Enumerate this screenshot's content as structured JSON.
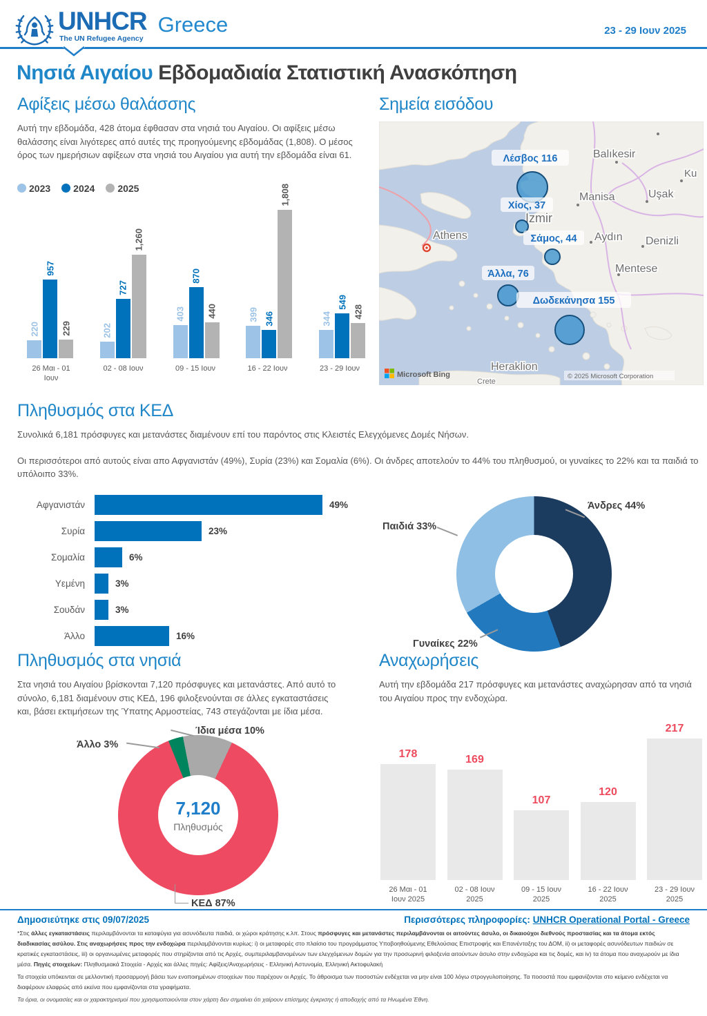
{
  "header": {
    "brand": "UNHCR",
    "tagline": "The UN Refugee Agency",
    "region": "Greece",
    "date_range": "23 - 29 Ιουν 2025"
  },
  "title": {
    "highlight": "Νησιά Αιγαίου",
    "rest": " Εβδομαδιαία Στατιστική Ανασκόπηση"
  },
  "arrivals": {
    "title": "Αφίξεις μέσω θαλάσσης",
    "body": "Αυτή την εβδομάδα, 428 άτομα έφθασαν στα νησιά του Αιγαίου. Οι αφίξεις μέσω θαλάσσης είναι λιγότερες από αυτές της προηγούμενης εβδομάδας (1,808). Ο μέσος όρος των ημερήσιων αφίξεων στα νησιά του Αιγαίου για αυτή την εβδομάδα είναι 61."
  },
  "entry_points": {
    "title": "Σημεία εισόδου",
    "provider": "Microsoft Bing",
    "attribution": "© 2025 Microsoft Corporation",
    "locations": [
      {
        "name": "Λέσβος",
        "label": "Λέσβος 116",
        "value": 116
      },
      {
        "name": "Χίος",
        "label": "Χίος, 37",
        "value": 37
      },
      {
        "name": "Σάμος",
        "label": "Σάμος, 44",
        "value": 44
      },
      {
        "name": "Άλλα",
        "label": "Άλλα, 76",
        "value": 76
      },
      {
        "name": "Δωδεκάνησα",
        "label": "Δωδεκάνησα 155",
        "value": 155
      }
    ],
    "cities": [
      "Athens",
      "Izmir",
      "Balıkesir",
      "Manisa",
      "Uşak",
      "Ku",
      "Aydın",
      "Denizli",
      "Mentese",
      "Heraklion",
      "Crete"
    ]
  },
  "ced": {
    "title": "Πληθυσμός στα ΚΕΔ",
    "body1": "Συνολικά 6,181 πρόσφυγες και μετανάστες διαμένουν επί του παρόντος στις Κλειστές Ελεγχόμενες Δομές Νήσων.",
    "body2": "Οι περισσότεροι από αυτούς είναι απο Αφγανιστάν (49%), Συρία (23%) και Σομαλία (6%). Οι άνδρες αποτελούν το 44% του πληθυσμού, οι γυναίκες το 22% και τα παιδιά το υπόλοιπο 33%.",
    "donut_labels": {
      "men": "Άνδρες 44%",
      "children": "Παιδιά 33%",
      "women": "Γυναίκες 22%"
    }
  },
  "islands": {
    "title": "Πληθυσμός στα νησιά",
    "body": "Στα νησιά του Αιγαίου βρίσκονται 7,120 πρόσφυγες και μετανάστες. Από αυτό το σύνολο, 6,181 διαμένουν στις ΚΕΔ, 196 φιλοξενούνται σε άλλες εγκαταστάσεις και, βάσει εκτιμήσεων της Ύπατης Αρμοστείας, 743 στεγάζονται με ίδια μέσα.",
    "donut_labels": {
      "own": "Ίδια μέσα 10%",
      "other": "Άλλο 3%",
      "ked": "ΚΕΔ 87%"
    },
    "center_value": "7,120",
    "center_label": "Πληθυσμός"
  },
  "departures": {
    "title": "Αναχωρήσεις",
    "body": "Αυτή την εβδομάδα 217 πρόσφυγες και μετανάστες αναχώρησαν από τα νησιά του Αιγαίου προς την ενδοχώρα."
  },
  "footer": {
    "published": "Δημοσιεύτηκε στις 09/07/2025",
    "more_info_label": "Περισσότερες πληροφορίες:",
    "more_info_link": "UNHCR Operational Portal - Greece",
    "notes": [
      {
        "italic": false,
        "segments": [
          {
            "text": "*Στις ",
            "bold": false
          },
          {
            "text": "άλλες εγκαταστάσεις",
            "bold": true
          },
          {
            "text": " περιλαμβάνονται τα καταφύγια για ασυνόδευτα παιδιά, οι χώροι κράτησης κ.λπ. Στους ",
            "bold": false
          },
          {
            "text": "πρόσφυγες και μετανάστες περιλαμβάνονται οι αιτούντες άσυλο, οι δικαιούχοι διεθνούς προστασίας και τα άτομα εκτός διαδικασίας ασύλου. ",
            "bold": true
          },
          {
            "text": "Στις αναχωρήσεις προς την ενδοχώρα",
            "bold": true
          },
          {
            "text": " περιλαμβάνονται κυρίως: i) οι μεταφορές στο πλαίσιο του προγράμματος Υποβοηθούμενης Εθελούσιας Επιστροφής και Επανένταξης του ΔΟΜ, ii) οι μεταφορές ασυνόδευτων παιδιών σε κρατικές εγκαταστάσεις, iii) οι οργανωμένες μεταφορές που στηρίζονται από τις Αρχές, συμπεριλαμβανομένων των ελεγχόμενων δομών για την προσωρινή φιλοξενία αιτούντων άσυλο στην ενδοχώρα και τις δομές, και iv) τα άτομα που αναχωρούν με ίδια μέσα. ",
            "bold": false
          },
          {
            "text": "Πηγές στοιχείων:",
            "bold": true
          },
          {
            "text": " Πληθυσμιακά Στοιχεία - Αρχές και άλλες πηγές: Αφίξεις/Αναχωρήσεις - Ελληνική Αστυνομία, Ελληνική Ακτοφυλακή",
            "bold": false
          }
        ]
      },
      {
        "italic": false,
        "segments": [
          {
            "text": "Τα στοιχεία υπόκεινται σε μελλοντική προσαρμογή βάσει των ενοποιημένων στοιχείων που παρέχουν οι Αρχές. Το άθροισμα των ποσοστών ενδέχεται να μην είναι 100 λόγω στρογγυλοποίησης. Τα ποσοστά που εμφανίζονται στο κείμενο ενδέχεται να διαφέρουν ελαφρώς από εκείνα που εμφανίζονται στα γραφήματα.",
            "bold": false
          }
        ]
      },
      {
        "italic": true,
        "segments": [
          {
            "text": "Τα όρια, οι ονομασίες και οι χαρακτηρισμοί που χρησιμοποιούνται στον χάρτη δεν σημαίνει ότι χαίρουν επίσημης έγκρισης ή αποδοχής από τα Ηνωμένα Έθνη.",
            "bold": false
          }
        ]
      }
    ]
  },
  "chart_data": [
    {
      "id": "sea-arrivals",
      "type": "bar",
      "title": "Αφίξεις μέσω θαλάσσης",
      "categories": [
        "26 Μαι - 01 Ιουν",
        "02 - 08 Ιουν",
        "09 - 15 Ιουν",
        "16 - 22 Ιουν",
        "23 - 29 Ιουν"
      ],
      "series": [
        {
          "name": "2023",
          "color": "#9DC3E6",
          "label_color": "#9DC3E6",
          "values": [
            220,
            202,
            403,
            399,
            344
          ]
        },
        {
          "name": "2024",
          "color": "#0072BC",
          "label_color": "#0072BC",
          "values": [
            957,
            727,
            870,
            346,
            549
          ]
        },
        {
          "name": "2025",
          "color": "#B3B3B3",
          "label_color": "#595959",
          "values": [
            229,
            1260,
            440,
            1808,
            428
          ]
        }
      ],
      "ylim": [
        0,
        1808
      ],
      "legend_position": "top",
      "grid": false
    },
    {
      "id": "nationalities",
      "type": "bar",
      "orientation": "horizontal",
      "categories": [
        "Αφγανιστάν",
        "Συρία",
        "Σομαλία",
        "Υεμένη",
        "Σουδάν",
        "Άλλο"
      ],
      "values": [
        49,
        23,
        6,
        3,
        3,
        16
      ],
      "unit": "%",
      "color": "#0072BC",
      "xlim": [
        0,
        49
      ]
    },
    {
      "id": "demographics",
      "type": "pie",
      "donut": true,
      "categories": [
        "Άνδρες",
        "Γυναίκες",
        "Παιδιά"
      ],
      "values": [
        44,
        22,
        33
      ],
      "unit": "%",
      "colors": [
        "#1B3B5F",
        "#2279BE",
        "#8FBFE4"
      ],
      "start_angle_deg": 0
    },
    {
      "id": "accommodation",
      "type": "pie",
      "donut": true,
      "categories": [
        "ΚΕΔ",
        "Άλλο",
        "Ίδια μέσα"
      ],
      "values": [
        87,
        3,
        10
      ],
      "unit": "%",
      "colors": [
        "#EE4A62",
        "#00845D",
        "#A9A9A9"
      ],
      "start_angle_deg": 25,
      "center_total": 7120
    },
    {
      "id": "departures",
      "type": "bar",
      "categories": [
        "26 Μαι - 01 Ιουν 2025",
        "02 - 08 Ιουν 2025",
        "09 - 15 Ιουν 2025",
        "16 - 22 Ιουν 2025",
        "23 - 29 Ιουν 2025"
      ],
      "values": [
        178,
        169,
        107,
        120,
        217
      ],
      "bar_color": "#E9E9E9",
      "label_color": "#ED4B5D",
      "ylim": [
        0,
        217
      ]
    }
  ]
}
